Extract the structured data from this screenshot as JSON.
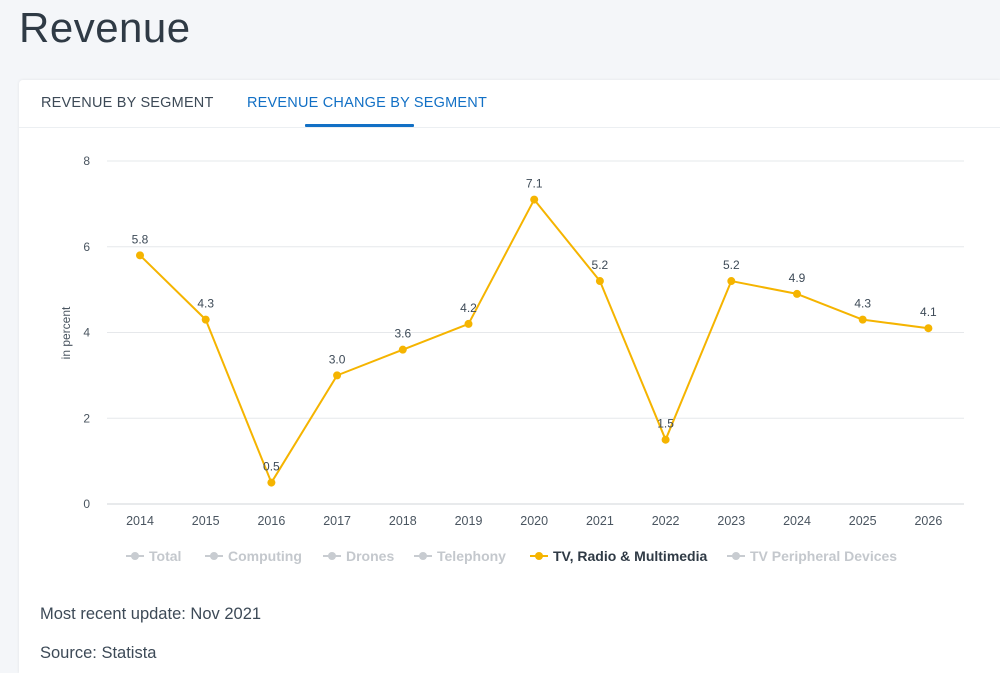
{
  "page": {
    "title": "Revenue"
  },
  "tabs": [
    {
      "label": "REVENUE BY SEGMENT",
      "active": false
    },
    {
      "label": "REVENUE CHANGE BY SEGMENT",
      "active": true
    }
  ],
  "colors": {
    "accent": "#1270c5",
    "series_active": "#f5b400",
    "legend_inactive": "#c8ccd1",
    "grid": "#e6e8eb"
  },
  "chart_data": {
    "type": "line",
    "ylabel": "in percent",
    "ylim": [
      0,
      8
    ],
    "yticks": [
      0,
      2,
      4,
      6,
      8
    ],
    "grid": true,
    "legend_position": "bottom",
    "categories": [
      "2014",
      "2015",
      "2016",
      "2017",
      "2018",
      "2019",
      "2020",
      "2021",
      "2022",
      "2023",
      "2024",
      "2025",
      "2026"
    ],
    "series": [
      {
        "name": "TV, Radio & Multimedia",
        "visible": true,
        "values": [
          5.8,
          4.3,
          0.5,
          3.0,
          3.6,
          4.2,
          7.1,
          5.2,
          1.5,
          5.2,
          4.9,
          4.3,
          4.1
        ],
        "labels": [
          "5.8",
          "4.3",
          "0.5",
          "3.0",
          "3.6",
          "4.2",
          "7.1",
          "5.2",
          "1.5",
          "5.2",
          "4.9",
          "4.3",
          "4.1"
        ]
      }
    ],
    "legend": [
      {
        "name": "Total",
        "active": false
      },
      {
        "name": "Computing",
        "active": false
      },
      {
        "name": "Drones",
        "active": false
      },
      {
        "name": "Telephony",
        "active": false
      },
      {
        "name": "TV, Radio & Multimedia",
        "active": true
      },
      {
        "name": "TV Peripheral Devices",
        "active": false
      }
    ]
  },
  "footer": {
    "update": "Most recent update: Nov 2021",
    "source": "Source: Statista"
  }
}
